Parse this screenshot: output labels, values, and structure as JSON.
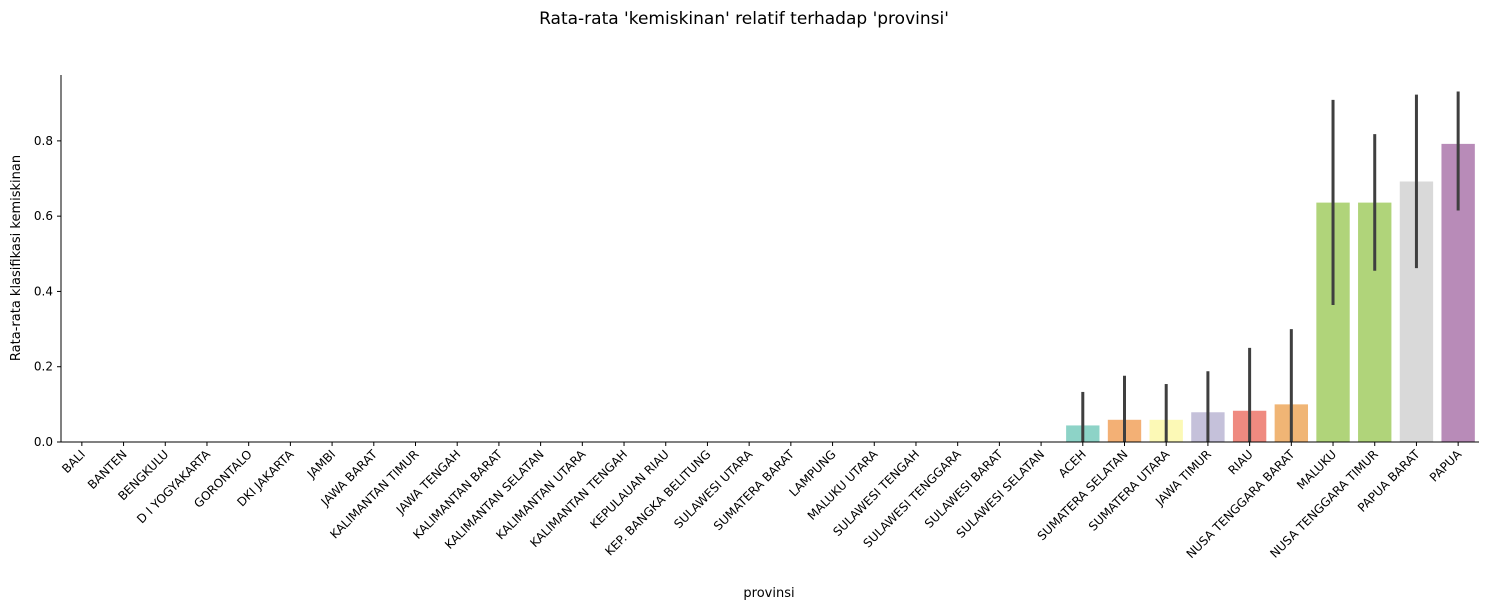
{
  "chart_data": {
    "type": "bar",
    "title": "Rata-rata 'kemiskinan' relatif terhadap 'provinsi'",
    "xlabel": "provinsi",
    "ylabel": "Rata-rata klasifikasi kemiskinan",
    "ylim": [
      0,
      0.975
    ],
    "yticks": [
      0.0,
      0.2,
      0.4,
      0.6,
      0.8
    ],
    "ytick_labels": [
      "0.0",
      "0.2",
      "0.4",
      "0.6",
      "0.8"
    ],
    "grid": false,
    "categories": [
      "BALI",
      "BANTEN",
      "BENGKULU",
      "D I YOGYAKARTA",
      "GORONTALO",
      "DKI JAKARTA",
      "JAMBI",
      "JAWA BARAT",
      "KALIMANTAN TIMUR",
      "JAWA TENGAH",
      "KALIMANTAN BARAT",
      "KALIMANTAN SELATAN",
      "KALIMANTAN UTARA",
      "KALIMANTAN TENGAH",
      "KEPULAUAN RIAU",
      "KEP. BANGKA BELITUNG",
      "SULAWESI UTARA",
      "SUMATERA BARAT",
      "LAMPUNG",
      "MALUKU UTARA",
      "SULAWESI TENGAH",
      "SULAWESI TENGGARA",
      "SULAWESI BARAT",
      "SULAWESI SELATAN",
      "ACEH",
      "SUMATERA SELATAN",
      "SUMATERA UTARA",
      "JAWA TIMUR",
      "RIAU",
      "NUSA TENGGARA BARAT",
      "MALUKU",
      "NUSA TENGGARA TIMUR",
      "PAPUA BARAT",
      "PAPUA"
    ],
    "values": [
      0,
      0,
      0,
      0,
      0,
      0,
      0,
      0,
      0,
      0,
      0,
      0,
      0,
      0,
      0,
      0,
      0,
      0,
      0,
      0,
      0,
      0,
      0,
      0,
      0.044,
      0.059,
      0.059,
      0.079,
      0.083,
      0.1,
      0.636,
      0.636,
      0.692,
      0.792
    ],
    "error_low": [
      0,
      0,
      0,
      0,
      0,
      0,
      0,
      0,
      0,
      0,
      0,
      0,
      0,
      0,
      0,
      0,
      0,
      0,
      0,
      0,
      0,
      0,
      0,
      0,
      0,
      0,
      0,
      0,
      0,
      0,
      0.364,
      0.455,
      0.462,
      0.615
    ],
    "error_high": [
      0,
      0,
      0,
      0,
      0,
      0,
      0,
      0,
      0,
      0,
      0,
      0,
      0,
      0,
      0,
      0,
      0,
      0,
      0,
      0,
      0,
      0,
      0,
      0,
      0.133,
      0.176,
      0.154,
      0.188,
      0.25,
      0.3,
      0.909,
      0.818,
      0.923,
      0.931
    ],
    "colors": [
      "#8dd3c7",
      "#ffffb3",
      "#bebada",
      "#fb8072",
      "#80b1d3",
      "#fdb462",
      "#b3de69",
      "#fccde5",
      "#d9d9d9",
      "#bc80bd",
      "#ccebc5",
      "#ffed6f",
      "#8dd3c7",
      "#ffffb3",
      "#bebada",
      "#fb8072",
      "#80b1d3",
      "#fdb462",
      "#b3de69",
      "#fccde5",
      "#d9d9d9",
      "#bc80bd",
      "#ccebc5",
      "#ffed6f",
      "#8dd3c7",
      "#f3b075",
      "#fcf9b6",
      "#c5c1da",
      "#ef8a80",
      "#f0b575",
      "#b0d47a",
      "#b0d47a",
      "#d9d9d9",
      "#b88bb8"
    ],
    "error_color": "#3f3f3f"
  }
}
